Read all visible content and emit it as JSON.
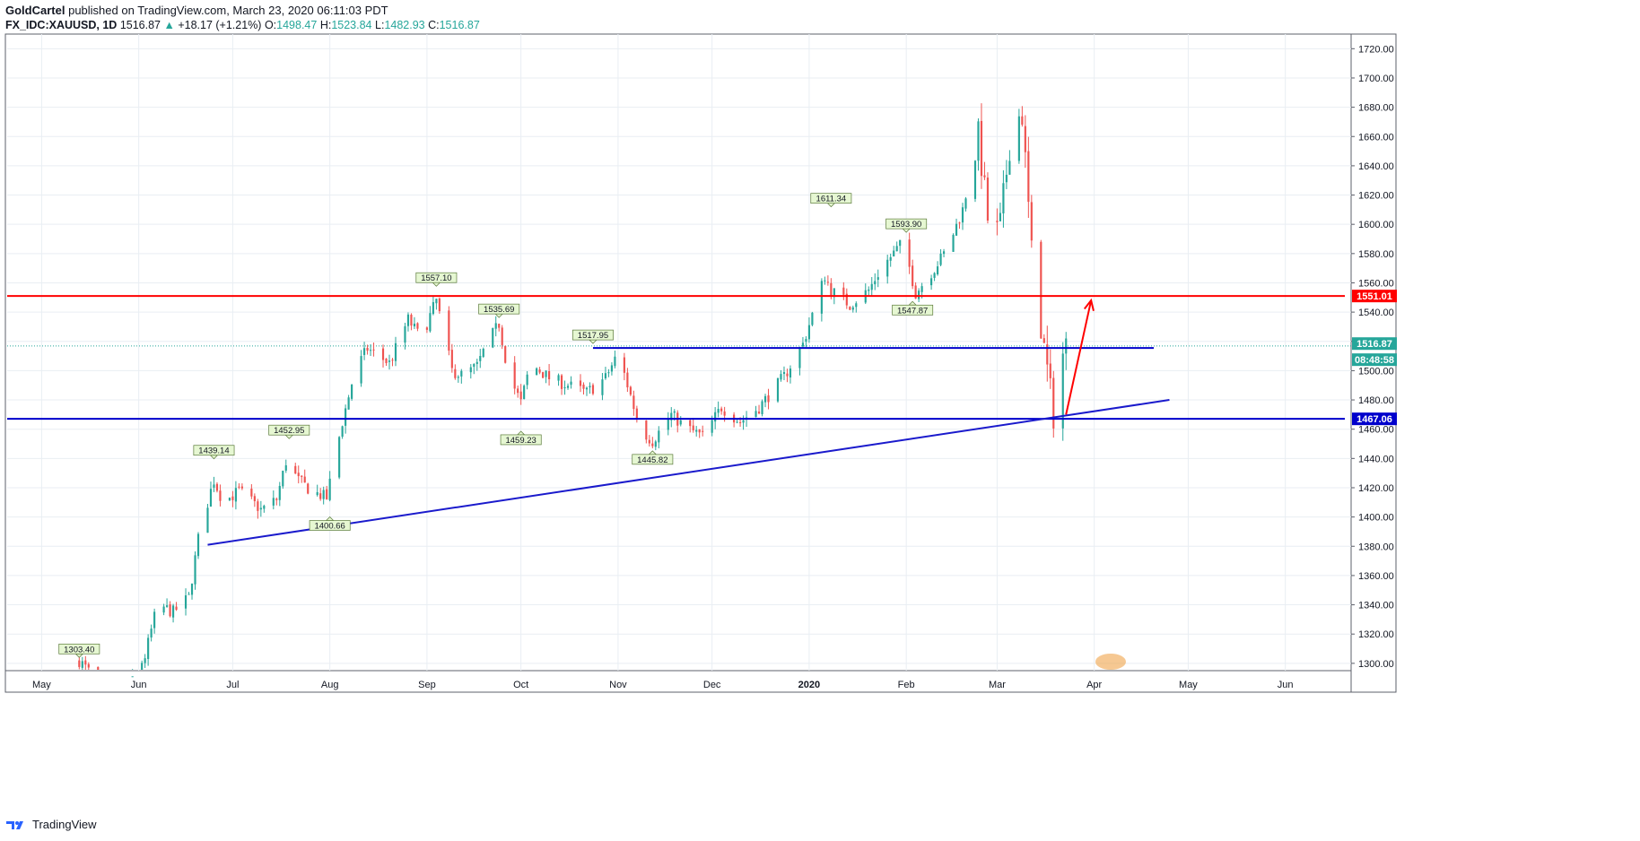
{
  "header": {
    "author": "GoldCartel",
    "published": "published on TradingView.com, March 23, 2020 06:11:03 PDT",
    "symbol": "FX_IDC:XAUUSD, 1D",
    "last": "1516.87",
    "arrow": "▲",
    "change": "+18.17 (+1.21%)",
    "o_label": "O:",
    "o": "1498.47",
    "h_label": "H:",
    "h": "1523.84",
    "l_label": "L:",
    "l": "1482.93",
    "c_label": "C:",
    "c": "1516.87"
  },
  "footer": {
    "brand": "TradingView"
  },
  "colors": {
    "up": "#26a69a",
    "down": "#ef5350",
    "resistance": "#ff0000",
    "support": "#0000cc",
    "trendline": "#1a1acc",
    "label_bg": "#e6f7d2",
    "grid": "#e9eef3"
  },
  "chart_data": {
    "type": "candlestick",
    "symbol": "FX_IDC:XAUUSD",
    "interval": "1D",
    "ylim": [
      1295,
      1730
    ],
    "y_ticks": [
      1300,
      1320,
      1340,
      1360,
      1380,
      1400,
      1420,
      1440,
      1460,
      1480,
      1500,
      1520,
      1540,
      1560,
      1580,
      1600,
      1620,
      1640,
      1660,
      1680,
      1700,
      1720
    ],
    "x_ticks": [
      {
        "label": "May",
        "date": "2019-05-01"
      },
      {
        "label": "Jun",
        "date": "2019-06-01"
      },
      {
        "label": "Jul",
        "date": "2019-07-01"
      },
      {
        "label": "Aug",
        "date": "2019-08-01"
      },
      {
        "label": "Sep",
        "date": "2019-09-01"
      },
      {
        "label": "Oct",
        "date": "2019-10-01"
      },
      {
        "label": "Nov",
        "date": "2019-11-01"
      },
      {
        "label": "Dec",
        "date": "2019-12-01"
      },
      {
        "label": "2020",
        "date": "2020-01-01",
        "bold": true
      },
      {
        "label": "Feb",
        "date": "2020-02-01"
      },
      {
        "label": "Mar",
        "date": "2020-03-01"
      },
      {
        "label": "Apr",
        "date": "2020-04-01"
      },
      {
        "label": "May",
        "date": "2020-05-01"
      },
      {
        "label": "Jun",
        "date": "2020-06-01"
      }
    ],
    "price_path": [
      [
        "2019-05-13",
        1302
      ],
      [
        "2019-05-20",
        1284
      ],
      [
        "2019-05-28",
        1282
      ],
      [
        "2019-06-03",
        1305
      ],
      [
        "2019-06-07",
        1340
      ],
      [
        "2019-06-12",
        1335
      ],
      [
        "2019-06-17",
        1345
      ],
      [
        "2019-06-20",
        1385
      ],
      [
        "2019-06-24",
        1418
      ],
      [
        "2019-06-25",
        1425
      ],
      [
        "2019-06-28",
        1410
      ],
      [
        "2019-07-03",
        1418
      ],
      [
        "2019-07-10",
        1405
      ],
      [
        "2019-07-15",
        1412
      ],
      [
        "2019-07-18",
        1438
      ],
      [
        "2019-07-22",
        1425
      ],
      [
        "2019-07-26",
        1418
      ],
      [
        "2019-07-31",
        1413
      ],
      [
        "2019-08-05",
        1465
      ],
      [
        "2019-08-09",
        1500
      ],
      [
        "2019-08-13",
        1515
      ],
      [
        "2019-08-20",
        1505
      ],
      [
        "2019-08-26",
        1535
      ],
      [
        "2019-08-30",
        1522
      ],
      [
        "2019-09-04",
        1548
      ],
      [
        "2019-09-09",
        1500
      ],
      [
        "2019-09-12",
        1497
      ],
      [
        "2019-09-17",
        1503
      ],
      [
        "2019-09-20",
        1518
      ],
      [
        "2019-09-24",
        1532
      ],
      [
        "2019-09-27",
        1498
      ],
      [
        "2019-10-01",
        1478
      ],
      [
        "2019-10-04",
        1505
      ],
      [
        "2019-10-10",
        1495
      ],
      [
        "2019-10-16",
        1490
      ],
      [
        "2019-10-22",
        1485
      ],
      [
        "2019-10-28",
        1495
      ],
      [
        "2019-11-01",
        1512
      ],
      [
        "2019-11-05",
        1483
      ],
      [
        "2019-11-08",
        1460
      ],
      [
        "2019-11-12",
        1452
      ],
      [
        "2019-11-18",
        1470
      ],
      [
        "2019-11-22",
        1462
      ],
      [
        "2019-11-28",
        1455
      ],
      [
        "2019-12-04",
        1475
      ],
      [
        "2019-12-10",
        1465
      ],
      [
        "2019-12-16",
        1475
      ],
      [
        "2019-12-24",
        1496
      ],
      [
        "2019-12-30",
        1518
      ],
      [
        "2020-01-06",
        1565
      ],
      [
        "2020-01-08",
        1555
      ],
      [
        "2020-01-14",
        1545
      ],
      [
        "2020-01-20",
        1555
      ],
      [
        "2020-01-24",
        1570
      ],
      [
        "2020-01-31",
        1588
      ],
      [
        "2020-02-04",
        1553
      ],
      [
        "2020-02-10",
        1570
      ],
      [
        "2020-02-14",
        1583
      ],
      [
        "2020-02-19",
        1610
      ],
      [
        "2020-02-24",
        1660
      ],
      [
        "2020-02-28",
        1585
      ],
      [
        "2020-03-02",
        1600
      ],
      [
        "2020-03-06",
        1672
      ],
      [
        "2020-03-09",
        1675
      ],
      [
        "2020-03-12",
        1580
      ],
      [
        "2020-03-16",
        1515
      ],
      [
        "2020-03-19",
        1470
      ],
      [
        "2020-03-20",
        1500
      ],
      [
        "2020-03-23",
        1517
      ]
    ],
    "price_labels": [
      {
        "text": "1303.40",
        "date": "2019-05-13",
        "price": 1303.4,
        "pos": "above"
      },
      {
        "text": "1439.14",
        "date": "2019-06-25",
        "price": 1439.14,
        "pos": "above"
      },
      {
        "text": "1452.95",
        "date": "2019-07-19",
        "price": 1452.95,
        "pos": "above"
      },
      {
        "text": "1400.66",
        "date": "2019-08-01",
        "price": 1400.66,
        "pos": "below"
      },
      {
        "text": "1557.10",
        "date": "2019-09-04",
        "price": 1557.1,
        "pos": "above"
      },
      {
        "text": "1535.69",
        "date": "2019-09-24",
        "price": 1535.69,
        "pos": "above"
      },
      {
        "text": "1459.23",
        "date": "2019-10-01",
        "price": 1459.23,
        "pos": "below"
      },
      {
        "text": "1517.95",
        "date": "2019-10-24",
        "price": 1517.95,
        "pos": "above"
      },
      {
        "text": "1445.82",
        "date": "2019-11-12",
        "price": 1445.82,
        "pos": "below"
      },
      {
        "text": "1611.34",
        "date": "2020-01-08",
        "price": 1611.34,
        "pos": "above"
      },
      {
        "text": "1593.90",
        "date": "2020-02-01",
        "price": 1593.9,
        "pos": "above"
      },
      {
        "text": "1547.87",
        "date": "2020-02-03",
        "price": 1547.87,
        "pos": "below"
      }
    ],
    "horizontal_lines": [
      {
        "price": 1551.01,
        "label": "1551.01",
        "color": "#ff0000",
        "from": "2019-04-20",
        "to": "2020-06-20",
        "width": 2
      },
      {
        "price": 1515.5,
        "label": "",
        "color": "#0000cc",
        "from": "2019-10-24",
        "to": "2020-04-20",
        "width": 2
      },
      {
        "price": 1467.06,
        "label": "1467.06",
        "color": "#0000cc",
        "from": "2019-04-20",
        "to": "2020-06-20",
        "width": 2
      }
    ],
    "trendline": {
      "from": {
        "date": "2019-06-23",
        "price": 1381
      },
      "to": {
        "date": "2020-04-25",
        "price": 1480
      },
      "color": "#1a1acc"
    },
    "arrow": {
      "from": {
        "date": "2020-03-23",
        "price": 1470
      },
      "to": {
        "date": "2020-03-31",
        "price": 1548
      },
      "color": "#ff0000"
    },
    "axis_labels": [
      {
        "text": "1551.01",
        "price": 1551.01,
        "bg": "#ff0000"
      },
      {
        "text": "1516.87",
        "price": 1518.5,
        "bg": "#26a69a"
      },
      {
        "text": "08:48:58",
        "price": 1507.5,
        "bg": "#26a69a"
      },
      {
        "text": "1467.06",
        "price": 1467.06,
        "bg": "#0000cc"
      }
    ],
    "last_price_line": 1516.87
  }
}
